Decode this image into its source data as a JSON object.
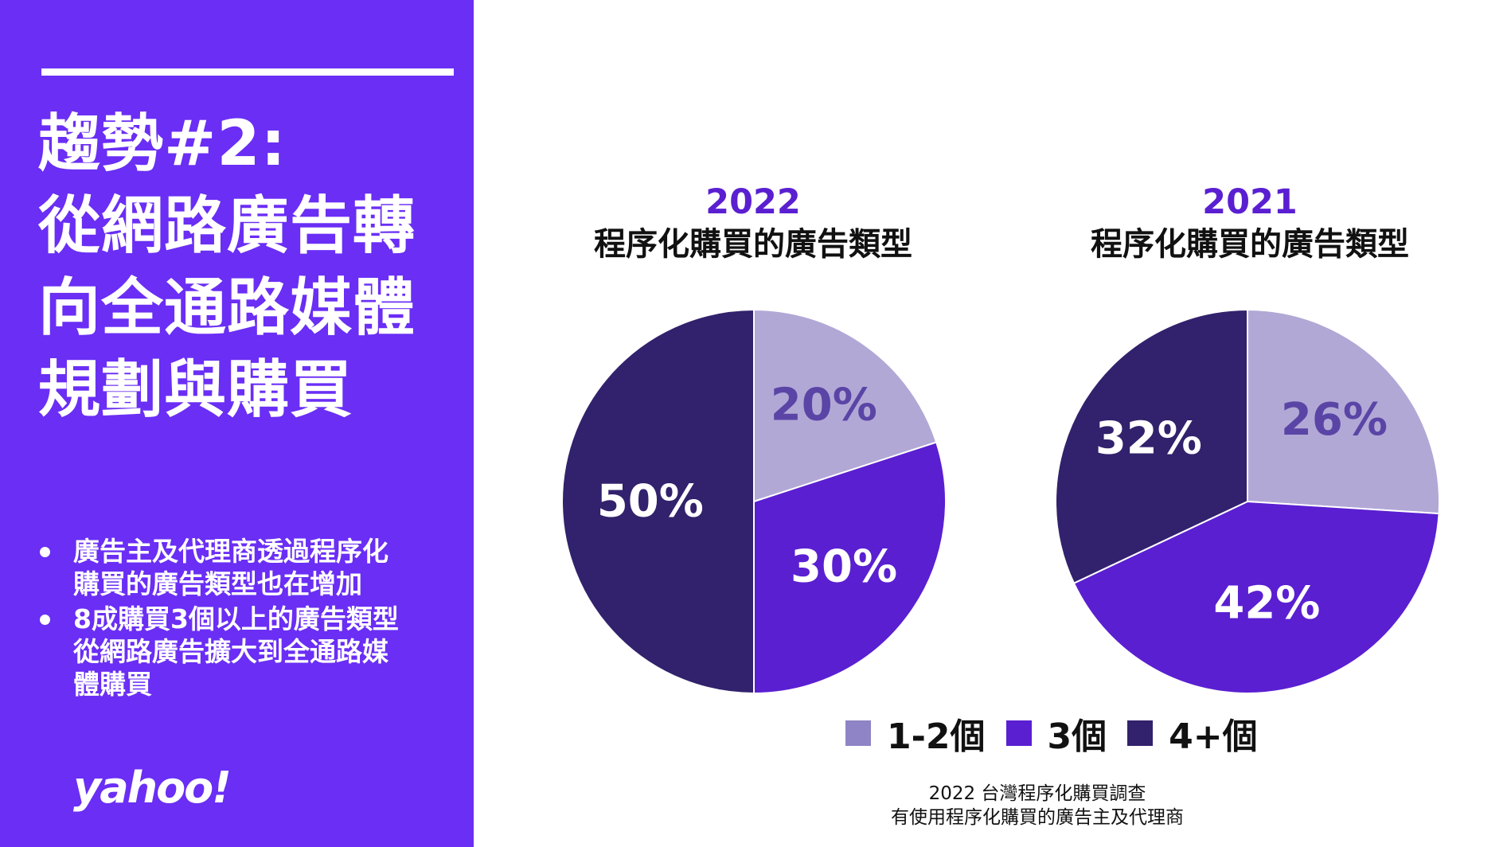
{
  "headline": [
    "趨勢#2:",
    "從網路廣告轉",
    "向全通路媒體",
    "規劃與購買"
  ],
  "bullets": [
    [
      "廣告主及代理商透過程序化",
      "購買的廣告類型也在增加"
    ],
    [
      "8成購買3個以上的廣告類型",
      "從網路廣告擴大到全通路媒",
      "體購買"
    ]
  ],
  "logo": "yahoo!",
  "colors": {
    "panel": "#6a2ef5",
    "light": "#b2a8d6",
    "mid": "#5a1fd1",
    "dark": "#32216c",
    "legend_light": "#8f84c5",
    "label_on_light": "#5a45a6",
    "label_on_dark": "#ffffff"
  },
  "chart_data": [
    {
      "type": "pie",
      "title": "2022",
      "subtitle": "程序化購買的廣告類型",
      "categories": [
        "1-2個",
        "3個",
        "4+個"
      ],
      "values": [
        20,
        30,
        50
      ],
      "labels": [
        "20%",
        "30%",
        "50%"
      ]
    },
    {
      "type": "pie",
      "title": "2021",
      "subtitle": "程序化購買的廣告類型",
      "categories": [
        "1-2個",
        "3個",
        "4+個"
      ],
      "values": [
        26,
        42,
        32
      ],
      "labels": [
        "26%",
        "42%",
        "32%"
      ]
    }
  ],
  "legend": [
    {
      "label": "1-2個",
      "color": "#8f84c5"
    },
    {
      "label": "3個",
      "color": "#5a1fd1"
    },
    {
      "label": "4+個",
      "color": "#32216c"
    }
  ],
  "source": [
    "2022 台灣程序化購買調查",
    "有使用程序化購買的廣告主及代理商"
  ]
}
